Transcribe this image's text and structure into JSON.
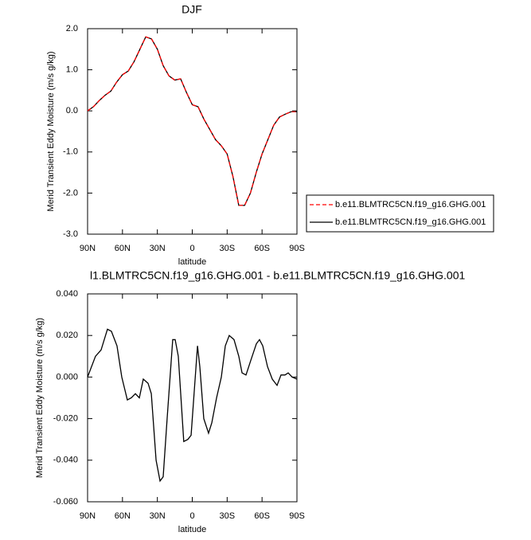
{
  "chart_data": [
    {
      "type": "line",
      "title": "DJF",
      "xlabel": "latitude",
      "ylabel": "Merid Transient Eddy Moisture (m/s g/kg)",
      "x": [
        90,
        85,
        80,
        75,
        70,
        65,
        60,
        55,
        50,
        45,
        40,
        35,
        30,
        25,
        20,
        15,
        10,
        5,
        0,
        -5,
        -10,
        -15,
        -20,
        -25,
        -30,
        -35,
        -40,
        -45,
        -50,
        -55,
        -60,
        -65,
        -70,
        -75,
        -80,
        -85,
        -90
      ],
      "series": [
        {
          "name": "b.e11.BLMTRC5CN.f19_g16.GHG.001",
          "color": "#ff0000",
          "style": "dashed",
          "values": [
            0.0,
            0.1,
            0.25,
            0.38,
            0.48,
            0.7,
            0.88,
            0.97,
            1.2,
            1.5,
            1.8,
            1.75,
            1.5,
            1.1,
            0.85,
            0.75,
            0.78,
            0.45,
            0.15,
            0.1,
            -0.2,
            -0.45,
            -0.7,
            -0.85,
            -1.05,
            -1.6,
            -2.3,
            -2.3,
            -2.0,
            -1.5,
            -1.05,
            -0.7,
            -0.35,
            -0.15,
            -0.08,
            -0.02,
            -0.02
          ]
        },
        {
          "name": "b.e11.BLMTRC5CN.f19_g16.GHG.001",
          "color": "#000000",
          "style": "solid",
          "values": [
            0.0,
            0.1,
            0.25,
            0.38,
            0.48,
            0.7,
            0.88,
            0.97,
            1.2,
            1.5,
            1.8,
            1.75,
            1.5,
            1.1,
            0.85,
            0.75,
            0.78,
            0.45,
            0.15,
            0.1,
            -0.2,
            -0.45,
            -0.7,
            -0.85,
            -1.05,
            -1.6,
            -2.3,
            -2.3,
            -2.0,
            -1.5,
            -1.05,
            -0.7,
            -0.35,
            -0.15,
            -0.08,
            -0.02,
            -0.02
          ]
        }
      ],
      "xlim": [
        90,
        -90
      ],
      "xticks": [
        {
          "value": 90,
          "label": "90N"
        },
        {
          "value": 60,
          "label": "60N"
        },
        {
          "value": 30,
          "label": "30N"
        },
        0,
        {
          "value": -30,
          "label": "30S"
        },
        {
          "value": -60,
          "label": "60S"
        },
        {
          "value": -90,
          "label": "90S"
        }
      ],
      "ylim": [
        -3,
        2
      ],
      "yticks": [
        {
          "value": 2,
          "label": "2.0"
        },
        {
          "value": 1,
          "label": "1.0"
        },
        {
          "value": 0,
          "label": "0.0"
        },
        {
          "value": -1,
          "label": "-1.0"
        },
        {
          "value": -2,
          "label": "-2.0"
        },
        {
          "value": -3,
          "label": "-3.0"
        }
      ],
      "legend": "right"
    },
    {
      "type": "line",
      "title": "l1.BLMTRC5CN.f19_g16.GHG.001 - b.e11.BLMTRC5CN.f19_g16.GHG.001",
      "xlabel": "latitude",
      "ylabel": "Merid Transient Eddy Moisture (m/s g/kg)",
      "x": [
        90,
        83.2,
        78.4,
        72.9,
        69.5,
        64.7,
        60.6,
        55.8,
        52.4,
        48.9,
        45.5,
        42.1,
        38,
        35.2,
        31.1,
        27.7,
        25,
        21.6,
        16.8,
        14.7,
        12,
        7.3,
        3.8,
        1,
        -4.5,
        -6.5,
        -9.9,
        -14,
        -16.8,
        -20.9,
        -25,
        -28.4,
        -31.8,
        -35.9,
        -40,
        -42.8,
        -46.2,
        -50.3,
        -55.1,
        -57.8,
        -60.6,
        -64.7,
        -68.8,
        -72.9,
        -76.3,
        -79.7,
        -82.5,
        -85.9,
        -90
      ],
      "values": [
        0.0,
        0.01,
        0.013,
        0.023,
        0.022,
        0.015,
        0.0,
        -0.011,
        -0.01,
        -0.008,
        -0.01,
        -0.001,
        -0.003,
        -0.008,
        -0.04,
        -0.05,
        -0.048,
        -0.02,
        0.018,
        0.018,
        0.01,
        -0.031,
        -0.03,
        -0.028,
        0.015,
        0.005,
        -0.02,
        -0.027,
        -0.022,
        -0.01,
        0.0,
        0.015,
        0.02,
        0.018,
        0.01,
        0.002,
        0.001,
        0.008,
        0.016,
        0.018,
        0.015,
        0.005,
        -0.001,
        -0.004,
        0.001,
        0.001,
        0.002,
        0.0,
        -0.001
      ],
      "color": "#000000",
      "xlim": [
        90,
        -90
      ],
      "xticks": [
        {
          "value": 90,
          "label": "90N"
        },
        {
          "value": 60,
          "label": "60N"
        },
        {
          "value": 30,
          "label": "30N"
        },
        0,
        {
          "value": -30,
          "label": "30S"
        },
        {
          "value": -60,
          "label": "60S"
        },
        {
          "value": -90,
          "label": "90S"
        }
      ],
      "ylim": [
        -0.06,
        0.04
      ],
      "yticks": [
        {
          "value": 0.04,
          "label": "0.040"
        },
        {
          "value": 0.02,
          "label": "0.020"
        },
        {
          "value": 0,
          "label": "0.000"
        },
        {
          "value": -0.02,
          "label": "-0.020"
        },
        {
          "value": -0.04,
          "label": "-0.040"
        },
        {
          "value": -0.06,
          "label": "-0.060"
        }
      ]
    }
  ]
}
